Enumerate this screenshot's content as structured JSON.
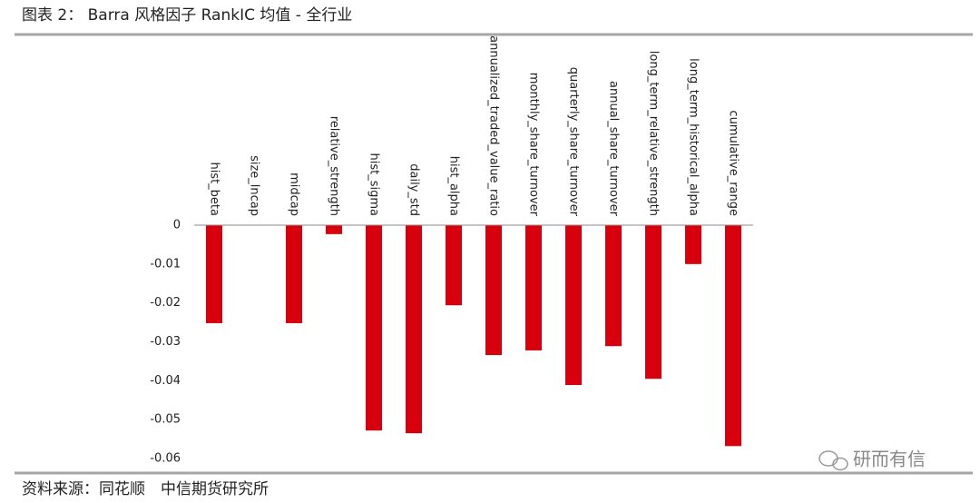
{
  "header": {
    "title": "图表 2： Barra 风格因子 RankIC 均值 - 全行业"
  },
  "chart_data": {
    "type": "bar",
    "categories": [
      "hist_beta",
      "size_lncap",
      "midcap",
      "relative_strength",
      "hist_sigma",
      "daily_std",
      "hist_alpha",
      "annualized_traded_value_ratio",
      "monthly_share_turnover",
      "quarterly_share_turnover",
      "annual_share_turnover",
      "long_term_relative_strength",
      "long_term_historical_alpha",
      "cumulative_range"
    ],
    "values": [
      -0.0252,
      0,
      -0.0252,
      -0.0023,
      -0.0528,
      -0.0535,
      -0.0206,
      -0.0334,
      -0.0322,
      -0.0411,
      -0.0311,
      -0.0395,
      -0.01,
      -0.0568
    ],
    "color": "#d9000d",
    "ylim": [
      -0.06,
      0
    ],
    "yticks": [
      0,
      -0.01,
      -0.02,
      -0.03,
      -0.04,
      -0.05,
      -0.06
    ],
    "grid": false
  },
  "footer": {
    "source": "资料来源：同花顺　中信期货研究所",
    "watermark": "研而有信"
  }
}
